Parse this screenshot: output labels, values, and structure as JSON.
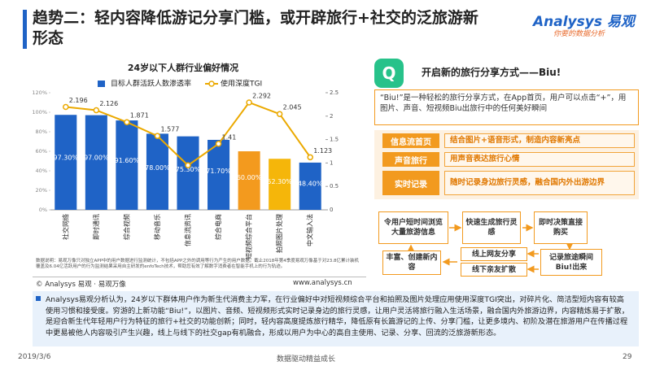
{
  "header": {
    "title": "趋势二：轻内容降低游记分享门槛，或开辟旅行+社交的泛旅游新形态",
    "logo_brand": "Analysys 易观",
    "logo_slogan": "你要的数据分析"
  },
  "chart_data": {
    "type": "bar",
    "title": "24岁以下人群行业偏好情况",
    "categories": [
      "社交网络",
      "即时通讯",
      "综合视频",
      "移动音乐",
      "信息流资讯",
      "综合电商",
      "短视频综合平台",
      "拍照图片处理",
      "中文输入法"
    ],
    "series": [
      {
        "name": "目标人群活跃人数渗透率",
        "type": "bar",
        "color": "#1f63c6",
        "colors": [
          "#1f63c6",
          "#1f63c6",
          "#1f63c6",
          "#1f63c6",
          "#1f63c6",
          "#1f63c6",
          "#f39a1e",
          "#f5b60a",
          "#1f63c6"
        ],
        "values": [
          97.3,
          97.0,
          91.6,
          78.0,
          75.3,
          71.7,
          60.0,
          52.3,
          48.4
        ],
        "value_labels": [
          "97.30%",
          "97.00%",
          "91.60%",
          "78.00%",
          "75.30%",
          "71.70%",
          "60.00%",
          "52.30%",
          "48.40%"
        ]
      },
      {
        "name": "使用深度TGI",
        "type": "line",
        "axis": "y2",
        "color": "#eba900",
        "values": [
          2.196,
          2.126,
          1.871,
          1.577,
          0.95,
          1.41,
          2.292,
          2.045,
          1.123
        ],
        "value_labels": [
          "2.196",
          "2.126",
          "1.871",
          "1.577",
          null,
          "1.41",
          "2.292",
          "2.045",
          "1.123"
        ]
      }
    ],
    "ylim": [
      0,
      120
    ],
    "yticks": [
      {
        "value": 0,
        "label": "0%"
      },
      {
        "value": 20,
        "label": "20%"
      },
      {
        "value": 40,
        "label": "40%"
      },
      {
        "value": 60,
        "label": "60%"
      },
      {
        "value": 80,
        "label": "80%"
      },
      {
        "value": 100,
        "label": "100%"
      },
      {
        "value": 120,
        "label": "120%"
      }
    ],
    "y2lim": [
      0,
      2.5
    ],
    "y2ticks": [
      0,
      0.5,
      1,
      1.5,
      2,
      2.5
    ],
    "note": "数据说明：易观万像只对独立APP中的用户数据进行监测统计，不包括APP之外的调用等行为产生的用户数据。截止2018年第4季度易观万像基于对23.8亿累计装机覆盖及6.04亿活跃用户的行为监测结果采用自主研发的enfoTech技术，帮助您有效了解数字消费者在智能手机上的行为轨迹。",
    "source": "© Analysys 易观 · 易观万像",
    "website": "www.analysys.cn"
  },
  "panel": {
    "title": "开启新的旅行分享方式——Biu!",
    "description": "“Biu!”是一种轻松的旅行分享方式，在App首页，用户可以点击“+”，用图片、声音、短视频Biu出旅行中的任何美好瞬间",
    "features": [
      {
        "name": "信息流首页",
        "text": "结合图片+语音形式，制造内容新亮点"
      },
      {
        "name": "声音旅行",
        "text": "用声音表达旅行心情"
      },
      {
        "name": "实时记录",
        "text": "随时记录身边旅行灵感，融合国内外出游边界"
      }
    ],
    "flow": [
      "令用户短时间浏览大量旅游信息",
      "快速生成旅行灵感",
      "即时决策直接购买",
      "线上网友分享",
      "线下亲友扩散",
      "记录旅途瞬间Biu!出来",
      "丰富、创建新内容"
    ]
  },
  "summary": "Analysys易观分析认为，24岁以下群体用户作为新生代消费主力军，在行业偏好中对短视频综合平台和拍照及图片处理应用使用深度TGI突出，对碎片化、简洁型短内容有较高使用习惯和接受度。穷游的上新功能“Biu!”，以图片、音频、短视频形式实时记录身边的旅行灵感，让用户灵活将旅行融入生活场景，融合国内外旅游边界，内容精炼易于扩散，是迎合新生代年轻用户行为特征的旅行+社交的功能创新；同时，轻内容高度提炼旅行精华，降低原有长篇游记的上传、分享门槛，让更多境内、初阶及潜在旅游用户在传播过程中更易被他人内容吸引产生兴趣，线上与线下的社交gap有机融合，形成以用户为中心的高自主使用、记录、分享、回流的泛旅游新形态。",
  "footer": {
    "date": "2019/3/6",
    "slogan": "数据驱动精益成长",
    "page": "29"
  }
}
